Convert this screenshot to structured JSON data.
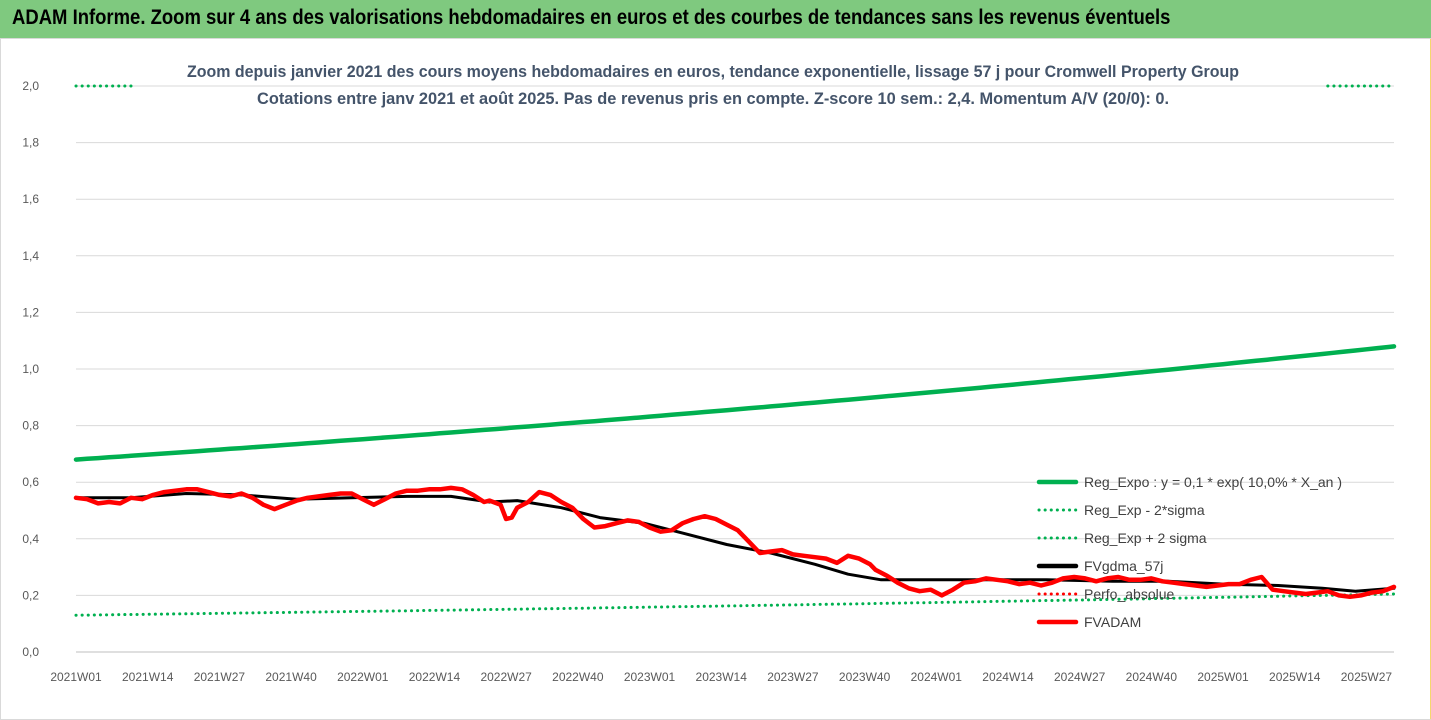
{
  "banner": {
    "title": "ADAM Informe. Zoom sur 4 ans des valorisations hebdomadaires en euros et des courbes de tendances sans les revenus éventuels"
  },
  "chart_data": {
    "type": "line",
    "title_line1": "Zoom depuis janvier 2021 des cours moyens hebdomadaires en euros, tendance exponentielle, lissage 57 j pour Cromwell Property Group",
    "title_line2": "Cotations entre janv 2021 et août 2025.  Pas de revenus pris en compte. Z-score 10 sem.: 2,4. Momentum A/V (20/0): 0.",
    "ylim": [
      0,
      2.0
    ],
    "yticks": [
      "0,0",
      "0,2",
      "0,4",
      "0,6",
      "0,8",
      "1,0",
      "1,2",
      "1,4",
      "1,6",
      "1,8",
      "2,0"
    ],
    "x_week_range": [
      0,
      239
    ],
    "xticks": [
      {
        "label": "2021W01",
        "week": 0
      },
      {
        "label": "2021W14",
        "week": 13
      },
      {
        "label": "2021W27",
        "week": 26
      },
      {
        "label": "2021W40",
        "week": 39
      },
      {
        "label": "2022W01",
        "week": 52
      },
      {
        "label": "2022W14",
        "week": 65
      },
      {
        "label": "2022W27",
        "week": 78
      },
      {
        "label": "2022W40",
        "week": 91
      },
      {
        "label": "2023W01",
        "week": 104
      },
      {
        "label": "2023W14",
        "week": 117
      },
      {
        "label": "2023W27",
        "week": 130
      },
      {
        "label": "2023W40",
        "week": 143
      },
      {
        "label": "2024W01",
        "week": 156
      },
      {
        "label": "2024W14",
        "week": 169
      },
      {
        "label": "2024W27",
        "week": 182
      },
      {
        "label": "2024W40",
        "week": 195
      },
      {
        "label": "2025W01",
        "week": 208
      },
      {
        "label": "2025W14",
        "week": 221
      },
      {
        "label": "2025W27",
        "week": 234
      }
    ],
    "grid": "horizontal",
    "legend_position": "right",
    "series": [
      {
        "name": "Reg_Expo : y = 0,1 * exp( 10,0% *  X_an )",
        "color": "#00b050",
        "style": "solid",
        "x": [
          0,
          239
        ],
        "y": [
          0.68,
          1.08
        ],
        "curve": "exponential"
      },
      {
        "name": "Reg_Exp - 2*sigma",
        "color": "#00b050",
        "style": "dotted",
        "x": [
          0,
          239
        ],
        "y": [
          0.13,
          0.205
        ],
        "curve": "exponential"
      },
      {
        "name": "Reg_Exp + 2 sigma",
        "color": "#00b050",
        "style": "dotted",
        "x": [
          0,
          10,
          227,
          239
        ],
        "y": [
          2.0,
          2.0,
          2.0,
          2.0
        ],
        "segments": [
          [
            0,
            10
          ],
          [
            227,
            239
          ]
        ]
      },
      {
        "name": "FVgdma_57j",
        "color": "#000000",
        "style": "solid",
        "x": [
          0,
          10,
          20,
          30,
          40,
          50,
          60,
          68,
          75,
          80,
          88,
          95,
          103,
          110,
          118,
          126,
          134,
          140,
          146,
          156,
          166,
          176,
          188,
          198,
          208,
          218,
          226,
          232,
          239
        ],
        "y": [
          0.545,
          0.545,
          0.56,
          0.555,
          0.54,
          0.545,
          0.55,
          0.55,
          0.53,
          0.535,
          0.51,
          0.475,
          0.455,
          0.42,
          0.38,
          0.35,
          0.31,
          0.275,
          0.255,
          0.255,
          0.255,
          0.255,
          0.25,
          0.25,
          0.24,
          0.235,
          0.225,
          0.215,
          0.225
        ]
      },
      {
        "name": "Perfo_absolue",
        "color": "#ff0000",
        "style": "dotted",
        "x": [],
        "y": []
      },
      {
        "name": "FVADAM",
        "color": "#ff0000",
        "style": "solid",
        "x": [
          0,
          2,
          4,
          6,
          8,
          10,
          12,
          14,
          16,
          18,
          20,
          22,
          24,
          26,
          28,
          30,
          32,
          34,
          36,
          38,
          40,
          42,
          44,
          46,
          48,
          50,
          52,
          54,
          56,
          58,
          60,
          62,
          64,
          66,
          68,
          70,
          72,
          74,
          75,
          77,
          78,
          79,
          80,
          82,
          84,
          86,
          88,
          90,
          92,
          94,
          96,
          98,
          100,
          102,
          104,
          106,
          108,
          110,
          112,
          114,
          116,
          118,
          120,
          122,
          124,
          126,
          128,
          130,
          132,
          134,
          136,
          138,
          140,
          142,
          144,
          145,
          147,
          149,
          151,
          153,
          155,
          157,
          159,
          161,
          163,
          165,
          167,
          169,
          171,
          173,
          175,
          177,
          179,
          181,
          183,
          185,
          187,
          189,
          191,
          193,
          195,
          197,
          199,
          201,
          203,
          205,
          207,
          209,
          211,
          213,
          215,
          217,
          219,
          221,
          223,
          225,
          227,
          229,
          231,
          233,
          235,
          237,
          239
        ],
        "y": [
          0.545,
          0.54,
          0.525,
          0.53,
          0.525,
          0.545,
          0.54,
          0.555,
          0.565,
          0.57,
          0.575,
          0.575,
          0.565,
          0.555,
          0.55,
          0.56,
          0.545,
          0.52,
          0.505,
          0.52,
          0.535,
          0.545,
          0.55,
          0.555,
          0.56,
          0.56,
          0.54,
          0.52,
          0.54,
          0.56,
          0.57,
          0.57,
          0.575,
          0.575,
          0.58,
          0.575,
          0.555,
          0.53,
          0.535,
          0.52,
          0.47,
          0.475,
          0.51,
          0.53,
          0.565,
          0.555,
          0.53,
          0.51,
          0.47,
          0.44,
          0.445,
          0.455,
          0.465,
          0.46,
          0.44,
          0.425,
          0.43,
          0.455,
          0.47,
          0.48,
          0.47,
          0.45,
          0.43,
          0.39,
          0.35,
          0.355,
          0.36,
          0.345,
          0.34,
          0.335,
          0.33,
          0.315,
          0.34,
          0.33,
          0.31,
          0.29,
          0.27,
          0.245,
          0.225,
          0.215,
          0.22,
          0.2,
          0.22,
          0.245,
          0.25,
          0.26,
          0.255,
          0.25,
          0.24,
          0.245,
          0.235,
          0.245,
          0.26,
          0.265,
          0.26,
          0.25,
          0.26,
          0.265,
          0.255,
          0.255,
          0.26,
          0.25,
          0.245,
          0.24,
          0.235,
          0.23,
          0.235,
          0.24,
          0.24,
          0.255,
          0.265,
          0.22,
          0.215,
          0.21,
          0.205,
          0.21,
          0.215,
          0.2,
          0.195,
          0.2,
          0.21,
          0.215,
          0.23
        ]
      }
    ]
  }
}
